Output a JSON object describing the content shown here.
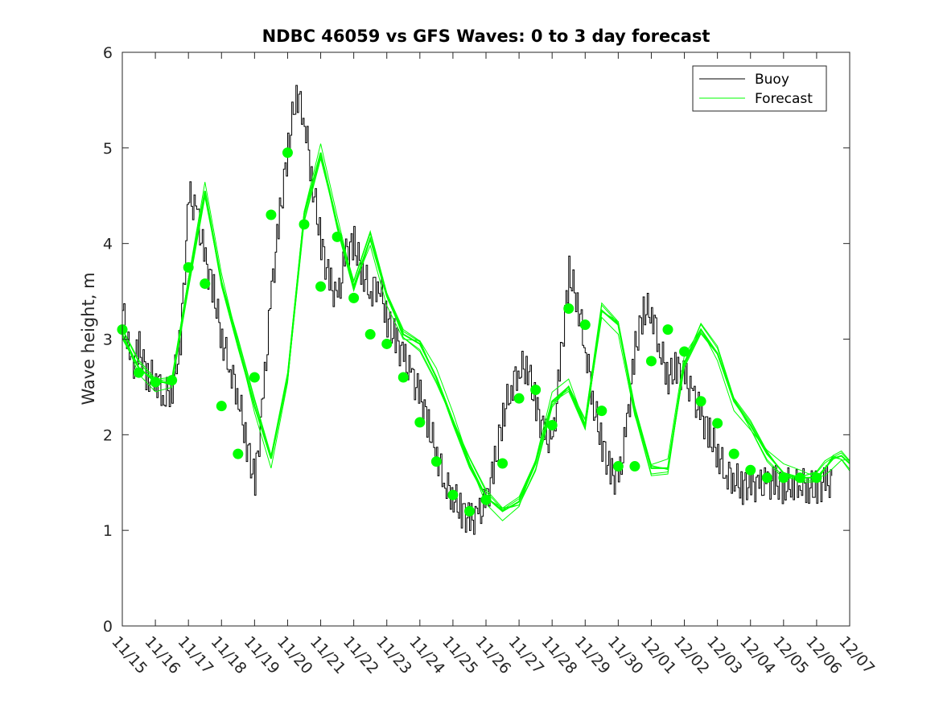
{
  "chart_data": {
    "type": "line",
    "title": "NDBC 46059 vs GFS Waves: 0 to 3 day forecast",
    "xlabel": "",
    "ylabel": "Wave height, m",
    "xlim": [
      0,
      22
    ],
    "ylim": [
      0,
      6
    ],
    "grid": false,
    "legend_position": "top-right",
    "x_tick_labels": [
      "11/15",
      "11/16",
      "11/17",
      "11/18",
      "11/19",
      "11/20",
      "11/21",
      "11/22",
      "11/23",
      "11/24",
      "11/25",
      "11/26",
      "11/27",
      "11/28",
      "11/29",
      "11/30",
      "12/01",
      "12/02",
      "12/03",
      "12/04",
      "12/05",
      "12/06",
      "12/07"
    ],
    "y_ticks": [
      0,
      1,
      2,
      3,
      4,
      5,
      6
    ],
    "colors": {
      "buoy": "#000000",
      "forecast": "#00ff00"
    },
    "series": [
      {
        "name": "Buoy",
        "x_unit": "days since 11/15",
        "x": [
          0,
          0.25,
          0.5,
          0.75,
          1,
          1.25,
          1.5,
          1.75,
          2,
          2.25,
          2.5,
          2.75,
          3,
          3.25,
          3.5,
          3.75,
          4,
          4.25,
          4.5,
          4.75,
          5,
          5.25,
          5.5,
          5.75,
          6,
          6.25,
          6.5,
          6.75,
          7,
          7.25,
          7.5,
          7.75,
          8,
          8.25,
          8.5,
          8.75,
          9,
          9.25,
          9.5,
          9.75,
          10,
          10.25,
          10.5,
          10.75,
          11,
          11.25,
          11.5,
          11.75,
          12,
          12.25,
          12.5,
          12.75,
          13,
          13.25,
          13.5,
          13.75,
          14,
          14.25,
          14.5,
          14.75,
          15,
          15.25,
          15.5,
          15.75,
          16,
          16.25,
          16.5,
          16.75,
          17,
          17.25,
          17.5,
          17.75,
          18,
          18.25,
          18.5,
          18.75,
          19,
          19.25,
          19.5,
          19.75,
          20,
          20.25,
          20.5,
          20.75,
          21,
          21.25
        ],
        "y": [
          3.3,
          2.7,
          2.9,
          2.6,
          2.6,
          2.4,
          2.5,
          3.0,
          4.5,
          4.3,
          3.8,
          3.5,
          3.0,
          2.7,
          2.4,
          1.9,
          1.5,
          2.4,
          3.5,
          4.3,
          5.0,
          5.6,
          5.3,
          4.6,
          4.0,
          3.6,
          3.4,
          3.9,
          4.0,
          3.7,
          3.5,
          3.6,
          3.2,
          3.0,
          2.8,
          2.6,
          2.4,
          2.1,
          1.8,
          1.5,
          1.35,
          1.2,
          1.1,
          1.15,
          1.3,
          1.7,
          2.2,
          2.5,
          2.7,
          2.7,
          2.3,
          2.0,
          1.9,
          2.8,
          3.7,
          3.4,
          2.9,
          2.3,
          1.9,
          1.6,
          1.5,
          2.1,
          2.9,
          3.3,
          3.3,
          2.9,
          2.6,
          2.7,
          2.6,
          2.4,
          2.2,
          2.0,
          1.8,
          1.6,
          1.55,
          1.45,
          1.5,
          1.45,
          1.5,
          1.5,
          1.45,
          1.5,
          1.5,
          1.45,
          1.45,
          1.5
        ]
      },
      {
        "name": "Forecast",
        "x": [
          0,
          0.5,
          1,
          1.5,
          2,
          2.5,
          3,
          3.5,
          4,
          4.5,
          5,
          5.5,
          6,
          6.5,
          7,
          7.5,
          8,
          8.5,
          9,
          9.5,
          10,
          10.5,
          11,
          11.5,
          12,
          12.5,
          13,
          13.5,
          14,
          14.5,
          15,
          15.5,
          16,
          16.5,
          17,
          17.5,
          18,
          18.5,
          19,
          19.5,
          20,
          20.5,
          21,
          21.25,
          21.5,
          21.75,
          22
        ],
        "y": [
          3.05,
          2.7,
          2.55,
          2.55,
          3.6,
          4.55,
          3.6,
          2.95,
          2.3,
          1.75,
          2.6,
          4.3,
          4.95,
          4.2,
          3.55,
          4.05,
          3.45,
          3.05,
          2.95,
          2.6,
          2.15,
          1.7,
          1.35,
          1.2,
          1.3,
          1.7,
          2.35,
          2.5,
          2.1,
          3.3,
          3.15,
          2.25,
          1.65,
          1.65,
          2.75,
          3.1,
          2.85,
          2.35,
          2.1,
          1.8,
          1.6,
          1.55,
          1.55,
          1.65,
          1.75,
          1.78,
          1.7
        ]
      }
    ],
    "markers": {
      "x": [
        0,
        0.5,
        1,
        1.5,
        2,
        2.5,
        3,
        3.5,
        4,
        4.5,
        5,
        5.5,
        6,
        6.5,
        7,
        7.5,
        8,
        8.5,
        9,
        9.5,
        10,
        10.5,
        11,
        11.5,
        12,
        12.5,
        13,
        13.5,
        14,
        14.5,
        15,
        15.5,
        16,
        16.5,
        17,
        17.5,
        18,
        18.5,
        19,
        19.5,
        20,
        20.5,
        21
      ],
      "y": [
        3.1,
        2.65,
        2.55,
        2.57,
        3.75,
        3.58,
        2.3,
        1.8,
        2.6,
        4.3,
        4.95,
        4.2,
        3.55,
        4.07,
        3.43,
        3.05,
        2.95,
        2.6,
        2.13,
        1.72,
        1.37,
        1.2,
        1.32,
        1.7,
        2.38,
        2.47,
        2.1,
        3.32,
        3.15,
        2.25,
        1.67,
        1.67,
        2.77,
        3.1,
        2.87,
        2.35,
        2.12,
        1.8,
        1.63,
        1.55,
        1.55,
        1.55,
        1.55
      ]
    },
    "legend": [
      "Buoy",
      "Forecast"
    ]
  }
}
